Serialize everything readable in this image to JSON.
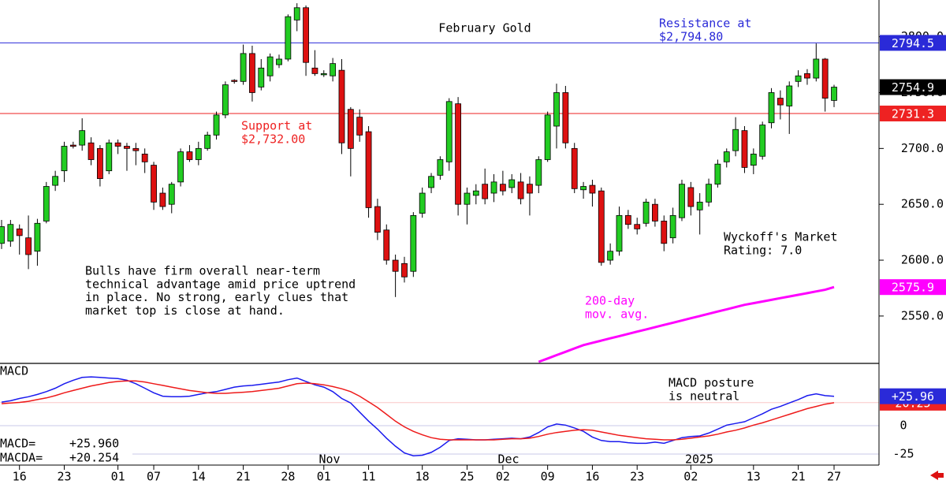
{
  "chart_data": [
    {
      "type": "candlestick",
      "title": "February Gold",
      "categories": [
        null,
        null,
        "16",
        null,
        null,
        null,
        null,
        "23",
        null,
        null,
        null,
        null,
        null,
        "01",
        null,
        null,
        null,
        "07",
        null,
        null,
        null,
        null,
        "14",
        null,
        null,
        null,
        null,
        "21",
        null,
        null,
        null,
        null,
        "28",
        null,
        null,
        null,
        "01",
        null,
        null,
        null,
        null,
        "11",
        null,
        null,
        null,
        null,
        null,
        "18",
        null,
        null,
        null,
        null,
        "25",
        null,
        null,
        null,
        "02",
        null,
        null,
        null,
        null,
        "09",
        null,
        null,
        null,
        null,
        "16",
        null,
        null,
        null,
        null,
        "23",
        null,
        null,
        null,
        null,
        null,
        "02",
        null,
        null,
        null,
        null,
        null,
        null,
        "13",
        null,
        null,
        null,
        null,
        "21",
        null,
        null,
        null,
        "27"
      ],
      "month_labels": [
        "Nov",
        "Dec",
        "2025"
      ],
      "open": [
        2615,
        2617,
        2628,
        2620,
        2608,
        2635,
        2667,
        2680,
        2703,
        2703,
        2705,
        2700,
        2680,
        2705,
        2702,
        2700,
        2695,
        2685,
        2660,
        2650,
        2670,
        2697,
        2690,
        2700,
        2712,
        2730,
        2761,
        2760,
        2785,
        2755,
        2765,
        2775,
        2780,
        2815,
        2826,
        2772,
        2766,
        2765,
        2770,
        2735,
        2728,
        2715,
        2648,
        2627,
        2600,
        2597,
        2590,
        2642,
        2665,
        2676,
        2688,
        2740,
        2650,
        2658,
        2668,
        2660,
        2668,
        2665,
        2670,
        2668,
        2667,
        2690,
        2720,
        2750,
        2700,
        2663,
        2667,
        2662,
        2600,
        2608,
        2640,
        2632,
        2633,
        2650,
        2635,
        2620,
        2638,
        2665,
        2645,
        2652,
        2668,
        2688,
        2698,
        2716,
        2685,
        2693,
        2723,
        2745,
        2738,
        2760,
        2767,
        2763,
        2780,
        2743
      ],
      "high": [
        2636,
        2636,
        2632,
        2640,
        2637,
        2670,
        2680,
        2706,
        2706,
        2727,
        2710,
        2703,
        2708,
        2708,
        2705,
        2705,
        2700,
        2688,
        2665,
        2670,
        2700,
        2703,
        2706,
        2715,
        2733,
        2760,
        2762,
        2793,
        2792,
        2780,
        2785,
        2784,
        2820,
        2830,
        2828,
        2788,
        2770,
        2781,
        2780,
        2737,
        2735,
        2720,
        2655,
        2632,
        2605,
        2603,
        2643,
        2665,
        2678,
        2693,
        2745,
        2746,
        2665,
        2668,
        2682,
        2677,
        2680,
        2677,
        2678,
        2675,
        2693,
        2733,
        2758,
        2756,
        2705,
        2670,
        2672,
        2665,
        2615,
        2648,
        2645,
        2638,
        2655,
        2655,
        2640,
        2647,
        2672,
        2670,
        2660,
        2673,
        2690,
        2700,
        2728,
        2720,
        2700,
        2724,
        2754,
        2752,
        2760,
        2770,
        2771,
        2794,
        2781,
        2757
      ],
      "low": [
        2610,
        2612,
        2605,
        2592,
        2595,
        2633,
        2662,
        2670,
        2700,
        2698,
        2685,
        2666,
        2677,
        2695,
        2680,
        2685,
        2678,
        2645,
        2645,
        2642,
        2666,
        2688,
        2685,
        2698,
        2708,
        2727,
        2758,
        2757,
        2742,
        2752,
        2760,
        2772,
        2778,
        2805,
        2765,
        2765,
        2764,
        2760,
        2695,
        2675,
        2706,
        2638,
        2618,
        2596,
        2567,
        2580,
        2585,
        2638,
        2660,
        2672,
        2680,
        2640,
        2632,
        2650,
        2650,
        2652,
        2658,
        2660,
        2650,
        2640,
        2660,
        2688,
        2700,
        2700,
        2660,
        2655,
        2648,
        2595,
        2596,
        2604,
        2628,
        2623,
        2630,
        2630,
        2608,
        2615,
        2635,
        2640,
        2623,
        2648,
        2665,
        2683,
        2693,
        2678,
        2677,
        2690,
        2718,
        2726,
        2713,
        2755,
        2757,
        2760,
        2733,
        2737
      ],
      "close": [
        2630,
        2632,
        2622,
        2605,
        2633,
        2666,
        2675,
        2702,
        2702,
        2716,
        2690,
        2673,
        2705,
        2702,
        2700,
        2698,
        2688,
        2652,
        2648,
        2668,
        2697,
        2690,
        2700,
        2712,
        2730,
        2757,
        2760,
        2785,
        2750,
        2772,
        2782,
        2780,
        2818,
        2826,
        2777,
        2767,
        2767,
        2776,
        2705,
        2700,
        2712,
        2647,
        2625,
        2600,
        2590,
        2585,
        2640,
        2660,
        2675,
        2690,
        2742,
        2650,
        2660,
        2662,
        2655,
        2670,
        2662,
        2672,
        2655,
        2660,
        2690,
        2730,
        2750,
        2705,
        2664,
        2666,
        2660,
        2598,
        2608,
        2640,
        2632,
        2628,
        2652,
        2635,
        2615,
        2640,
        2668,
        2648,
        2652,
        2668,
        2686,
        2697,
        2717,
        2683,
        2695,
        2721,
        2750,
        2739,
        2756,
        2765,
        2763,
        2780,
        2745,
        2754.9
      ],
      "up_color": "#22cc22",
      "down_color": "#dd1111",
      "series": [
        {
          "color": "#ff00ff",
          "values": [
            null,
            null,
            null,
            null,
            null,
            null,
            null,
            null,
            null,
            null,
            null,
            null,
            null,
            null,
            null,
            null,
            null,
            null,
            null,
            null,
            null,
            null,
            null,
            null,
            null,
            null,
            null,
            null,
            null,
            null,
            null,
            null,
            null,
            null,
            null,
            null,
            null,
            null,
            null,
            null,
            null,
            null,
            null,
            null,
            null,
            null,
            null,
            null,
            null,
            null,
            null,
            null,
            null,
            null,
            null,
            null,
            null,
            null,
            null,
            null,
            2509,
            2512,
            2515,
            2518,
            2521,
            2524,
            2526,
            2528,
            2530,
            2532,
            2534,
            2536,
            2538,
            2540,
            2542,
            2544,
            2546,
            2548,
            2550,
            2552,
            2554,
            2556,
            2558,
            2560,
            2561.5,
            2563,
            2564.5,
            2566,
            2567.5,
            2569,
            2570.5,
            2572,
            2573.5,
            2575.9
          ]
        }
      ],
      "ylim": [
        2508.3,
        2832.9
      ],
      "yticks": [
        {
          "value": 2800,
          "label": "2800.0"
        },
        {
          "value": 2750,
          "label": "2750.0"
        },
        {
          "value": 2700,
          "label": "2700.0"
        },
        {
          "value": 2650,
          "label": "2650.0"
        },
        {
          "value": 2600,
          "label": "2600.0"
        },
        {
          "value": 2550,
          "label": "2550.0"
        }
      ],
      "tags": [
        {
          "value": 2794.5,
          "color": "#2a2ad8",
          "line": true
        },
        {
          "value": 2754.9,
          "color": "#000000",
          "line": false
        },
        {
          "value": 2731.3,
          "color": "#ee2222",
          "line": true
        },
        {
          "value": 2575.9,
          "color": "#ff00ff",
          "line": false
        }
      ],
      "annotations": [
        {
          "lines": [
            "Resistance at",
            "$2,794.80"
          ],
          "color": "#2a2ad8"
        },
        {
          "lines": [
            "Support at",
            "$2,732.00"
          ],
          "color": "#ee2222"
        },
        {
          "lines": [
            "Bulls have firm overall near-term",
            "technical advantage amid price uptrend",
            "in place. No strong, early clues that",
            "market top is close at hand."
          ],
          "color": "#000000"
        },
        {
          "lines": [
            "Wyckoff's Market",
            "Rating: 7.0"
          ],
          "color": "#000000"
        },
        {
          "lines": [
            "200-day",
            "mov. avg."
          ],
          "color": "#ff00ff"
        }
      ]
    },
    {
      "type": "line",
      "title": "MACD",
      "series": [
        {
          "name": "MACD=",
          "color": "#1a1aee",
          "readout": {
            "value": 25.96,
            "label": "+25.960"
          },
          "values": [
            20.8,
            22,
            24,
            25.5,
            27.5,
            30,
            33,
            37,
            40,
            42.5,
            43,
            42.5,
            42,
            41.5,
            40,
            37,
            33,
            29,
            26,
            25.5,
            25.5,
            26,
            27.5,
            29,
            30,
            32,
            34,
            35,
            35.5,
            36.5,
            37.5,
            38.5,
            40.5,
            42,
            39,
            36,
            34,
            30,
            24,
            20,
            12,
            4,
            -3,
            -11,
            -18,
            -24,
            -26.5,
            -26,
            -23.5,
            -19,
            -13,
            -11.5,
            -12,
            -12.5,
            -12.5,
            -12,
            -11.5,
            -11,
            -11.5,
            -10,
            -6,
            -1,
            1.5,
            0.5,
            -2,
            -5,
            -10,
            -13,
            -14,
            -14,
            -15,
            -15.5,
            -15.5,
            -14.5,
            -15.5,
            -13,
            -10.5,
            -9.5,
            -9,
            -6.5,
            -3,
            0.5,
            2,
            3.5,
            7,
            10.5,
            14.5,
            17,
            20,
            23,
            26.5,
            28,
            26.5,
            25.96
          ]
        },
        {
          "name": "MACDA=",
          "color": "#ee1a1a",
          "readout": {
            "value": 20.254,
            "label": "+20.254"
          },
          "values": [
            19.4,
            20,
            20.5,
            21.5,
            23,
            24.5,
            26.5,
            29,
            31,
            33,
            35,
            36.5,
            38,
            39,
            39.5,
            39.5,
            38.5,
            37,
            35.5,
            34,
            32.5,
            31,
            30,
            29,
            28.5,
            28.5,
            29,
            29.5,
            30,
            31,
            32,
            33,
            35,
            37,
            37.5,
            37,
            36,
            34.5,
            32.5,
            30,
            26,
            21,
            16,
            10,
            4,
            -1,
            -5,
            -8,
            -10.5,
            -12,
            -12.5,
            -12.5,
            -12.5,
            -12.5,
            -12.5,
            -12.5,
            -12,
            -11.5,
            -11.5,
            -11,
            -9.5,
            -7.5,
            -6,
            -5,
            -4,
            -3.5,
            -4,
            -5.5,
            -7,
            -8.5,
            -9.5,
            -10.5,
            -11.5,
            -12,
            -12.5,
            -12.5,
            -12,
            -11,
            -10,
            -9,
            -7.5,
            -5.5,
            -4,
            -2,
            0.5,
            2.5,
            5,
            7.5,
            10,
            12.5,
            15,
            17,
            19,
            20.254
          ]
        }
      ],
      "ylim": [
        -34.7,
        54.2
      ],
      "yticks": [
        0,
        -25
      ],
      "tags": [
        {
          "value": 20.25,
          "color": "#ee2222",
          "line": true
        },
        {
          "value": 25.96,
          "label": "+25.96",
          "color": "#2a2ad8",
          "line": false
        }
      ],
      "annotations": [
        {
          "lines": [
            "MACD posture",
            "is neutral"
          ],
          "color": "#000000"
        }
      ]
    }
  ]
}
